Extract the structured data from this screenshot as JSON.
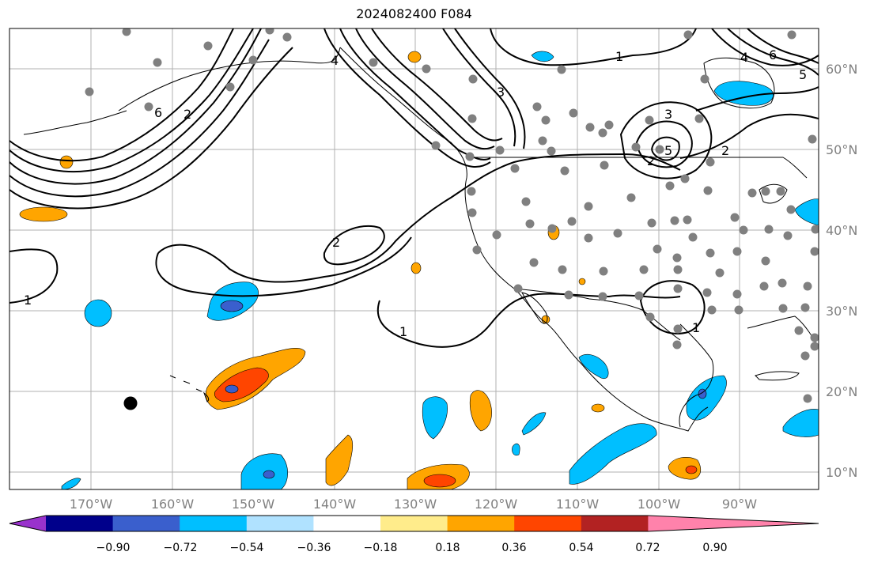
{
  "title": "2024082400 F084",
  "lon_labels": [
    "170°W",
    "160°W",
    "150°W",
    "140°W",
    "130°W",
    "120°W",
    "110°W",
    "100°W",
    "90°W"
  ],
  "lat_labels": [
    "60°N",
    "50°N",
    "40°N",
    "30°N",
    "20°N",
    "10°N"
  ],
  "colorbar": {
    "colors": [
      "#9932cc",
      "#00008b",
      "#3a5fcd",
      "#00bfff",
      "#b0e2ff",
      "#ffffff",
      "#ffec8b",
      "#ffa500",
      "#ff4500",
      "#b22222",
      "#ff82ab"
    ],
    "labels": [
      "−0.90",
      "−0.72",
      "−0.54",
      "−0.36",
      "−0.18",
      "0.18",
      "0.36",
      "0.54",
      "0.72",
      "0.90"
    ]
  },
  "contour_labels": [
    "1",
    "1",
    "1",
    "1",
    "2",
    "2",
    "2",
    "2",
    "3",
    "3",
    "4",
    "4",
    "5",
    "5",
    "6",
    "6"
  ],
  "colors": {
    "grid": "#b0b0b0",
    "station_dot": "#808080",
    "contour": "#000000",
    "axis_label": "#808080"
  }
}
